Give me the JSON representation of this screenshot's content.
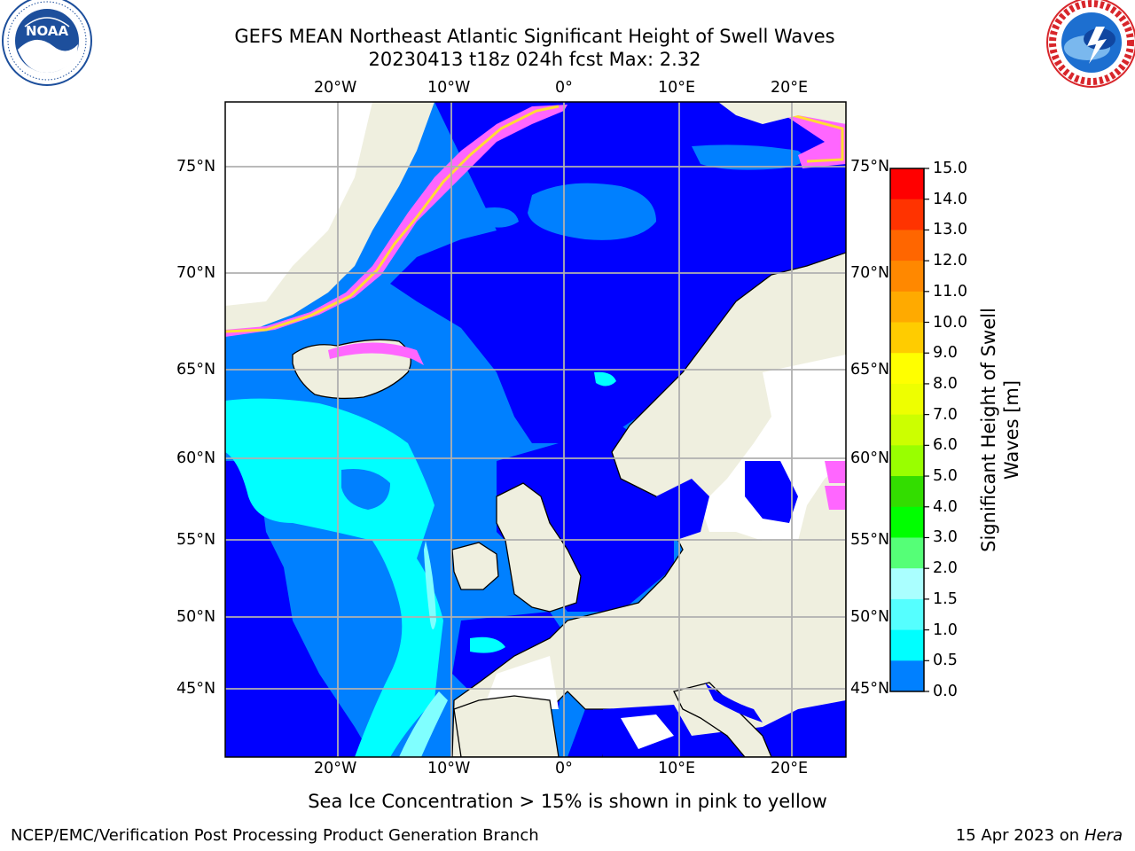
{
  "header": {
    "title_line1": "GEFS MEAN Northeast Atlantic Significant Height of Swell Waves",
    "title_line2": "20230413 t18z 024h fcst   Max: 2.32"
  },
  "logos": {
    "left": {
      "name": "NOAA",
      "text": "NOAA",
      "ring_text": "NATIONAL OCEANIC AND ATMOSPHERIC ADMINISTRATION · U.S. DEPARTMENT OF COMMERCE",
      "color": "#1d4f9c"
    },
    "right": {
      "name": "National Weather Service",
      "ring_text": "NATIONAL WEATHER SERVICE",
      "color": "#d8262b"
    }
  },
  "map": {
    "lon_labels": [
      "20°W",
      "10°W",
      "0°",
      "10°E",
      "20°E"
    ],
    "lat_labels": [
      "75°N",
      "70°N",
      "65°N",
      "60°N",
      "55°N",
      "50°N",
      "45°N"
    ],
    "colors": {
      "land": "#efefdf",
      "ocean_0_05": "#0000ff",
      "ocean_05_10": "#0080ff",
      "ocean_10_15": "#00ffff",
      "ocean_15_20": "#80ffff",
      "ice": "#ff66ff",
      "ice_high": "#ffdd33",
      "grid": "#b0b0b0",
      "no_data": "#ffffff"
    }
  },
  "colorbar": {
    "label": "Significant Height of Swell Waves [m]",
    "ticks": [
      "15.0",
      "14.0",
      "13.0",
      "12.0",
      "11.0",
      "10.0",
      "9.0",
      "8.0",
      "7.0",
      "6.0",
      "5.0",
      "4.0",
      "3.0",
      "2.0",
      "1.5",
      "1.0",
      "0.5",
      "0.0"
    ],
    "colors": [
      "#ff0000",
      "#ff3300",
      "#ff6600",
      "#ff8800",
      "#ffaa00",
      "#ffcc00",
      "#ffff00",
      "#eeff00",
      "#ccff00",
      "#99ff00",
      "#33dd00",
      "#00ff00",
      "#55ff77",
      "#aaffff",
      "#55ffff",
      "#00ffff",
      "#0080ff",
      "#0000ff"
    ]
  },
  "notes": {
    "ice_note": "Sea Ice Concentration > 15% is shown in pink to yellow",
    "credit": "NCEP/EMC/Verification Post Processing Product Generation Branch",
    "date": "15 Apr 2023 on ",
    "host": "Hera"
  }
}
